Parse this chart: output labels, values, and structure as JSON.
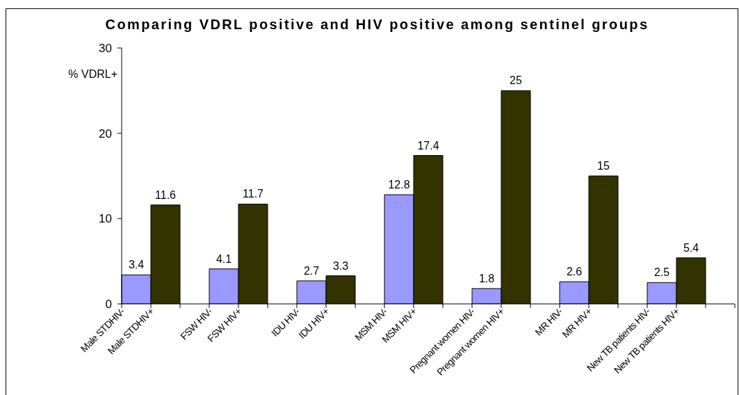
{
  "chart_data": {
    "type": "bar",
    "title": "Comparing VDRL positive and HIV positive among sentinel groups",
    "ylabel": "% VDRL+",
    "categories": [
      "Male STDHIV-",
      "Male STDHIV+",
      null,
      "FSW HIV-",
      "FSW HIV+",
      null,
      "IDU HIV-",
      "IDU HIV+",
      null,
      "MSM HIV-",
      "MSM HIV+",
      null,
      "Pregnant women HIV-",
      "Pregnant women HIV+",
      null,
      "MR HIV-",
      "MR HIV+",
      null,
      "New TB patients HIV-",
      "New TB patients HIV+",
      null
    ],
    "values": [
      3.4,
      11.6,
      null,
      4.1,
      11.7,
      null,
      2.7,
      3.3,
      null,
      12.8,
      17.4,
      null,
      1.8,
      25,
      null,
      2.6,
      15,
      null,
      2.5,
      5.4,
      null
    ],
    "colors": [
      "#9999ff",
      "#333300",
      null,
      "#9999ff",
      "#333300",
      null,
      "#9999ff",
      "#333300",
      null,
      "#9999ff",
      "#333300",
      null,
      "#9999ff",
      "#333300",
      null,
      "#9999ff",
      "#333300",
      null,
      "#9999ff",
      "#333300",
      null
    ],
    "ylim": [
      0,
      30
    ],
    "yticks": [
      0,
      10,
      20,
      30
    ],
    "data_labels": true,
    "grid": false,
    "legend": false
  }
}
